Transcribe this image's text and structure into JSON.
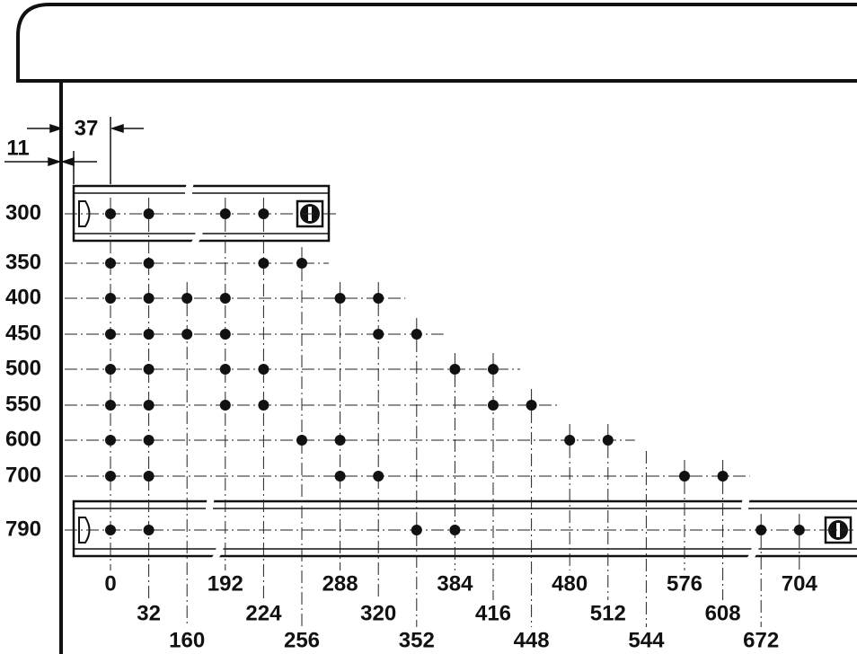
{
  "dimensions": {
    "offset_a": "37",
    "offset_b": "11"
  },
  "columns": [
    0,
    32,
    160,
    192,
    224,
    256,
    288,
    320,
    352,
    384,
    416,
    448,
    480,
    512,
    544,
    576,
    608,
    672,
    704
  ],
  "rows": [
    {
      "label": "300",
      "holes": [
        0,
        32,
        192,
        224
      ]
    },
    {
      "label": "350",
      "holes": [
        0,
        32,
        224,
        256
      ]
    },
    {
      "label": "400",
      "holes": [
        0,
        32,
        160,
        192,
        288,
        320
      ]
    },
    {
      "label": "450",
      "holes": [
        0,
        32,
        160,
        192,
        320,
        352
      ]
    },
    {
      "label": "500",
      "holes": [
        0,
        32,
        192,
        224,
        384,
        416
      ]
    },
    {
      "label": "550",
      "holes": [
        0,
        32,
        192,
        224,
        416,
        448
      ]
    },
    {
      "label": "600",
      "holes": [
        0,
        32,
        256,
        288,
        480,
        512
      ]
    },
    {
      "label": "700",
      "holes": [
        0,
        32,
        288,
        320,
        576,
        608
      ]
    },
    {
      "label": "790",
      "holes": [
        0,
        32,
        352,
        384,
        672,
        704
      ]
    }
  ]
}
